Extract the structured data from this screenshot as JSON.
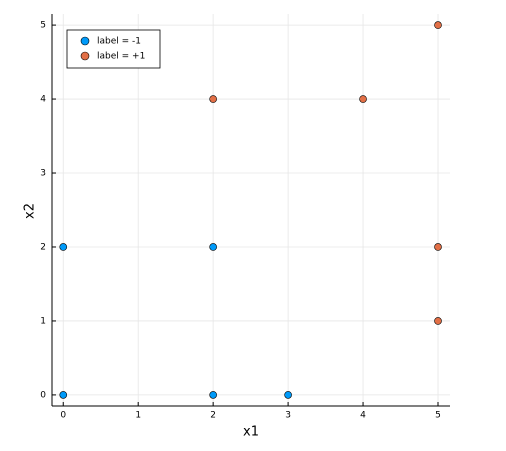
{
  "chart_data": {
    "type": "scatter",
    "xlabel": "x1",
    "ylabel": "x2",
    "series": [
      {
        "name": "label = -1",
        "color": "#009af9",
        "x": [
          0,
          0,
          2,
          2,
          3
        ],
        "values": [
          0,
          2,
          2,
          0,
          0
        ]
      },
      {
        "name": "label = +1",
        "color": "#e26f46",
        "x": [
          2,
          4,
          5,
          5,
          5
        ],
        "values": [
          4,
          4,
          5,
          2,
          1
        ]
      }
    ],
    "xlim": [
      -0.15,
      5.16
    ],
    "ylim": [
      -0.15,
      5.15
    ],
    "xticks": [
      0,
      1,
      2,
      3,
      4,
      5
    ],
    "yticks": [
      0,
      1,
      2,
      3,
      4,
      5
    ],
    "grid": true,
    "legend": "top-left"
  }
}
